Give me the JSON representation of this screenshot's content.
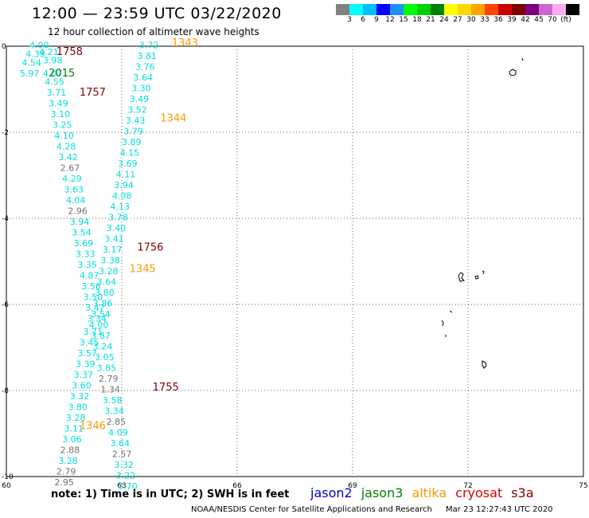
{
  "title": "12:00 — 23:59 UTC 03/22/2020",
  "subtitle": "12 hour collection of altimeter wave heights",
  "legend": {
    "colors": [
      "#808080",
      "#00ffff",
      "#00bfff",
      "#0000ff",
      "#1e90ff",
      "#00ff00",
      "#00d000",
      "#008000",
      "#ffff00",
      "#ffd700",
      "#ffa500",
      "#ff4500",
      "#cc0000",
      "#800000",
      "#800080",
      "#cc66cc",
      "#ffaaee",
      "#000000"
    ],
    "labels": [
      "3",
      "6",
      "9",
      "12",
      "15",
      "18",
      "21",
      "24",
      "27",
      "30",
      "33",
      "36",
      "39",
      "42",
      "45",
      "70",
      "(ft)"
    ]
  },
  "axes": {
    "x_ticks": [
      "60",
      "63",
      "66",
      "69",
      "72",
      "75"
    ],
    "y_ticks": [
      "0",
      "-2",
      "-4",
      "-6",
      "-8",
      "-10"
    ],
    "x_range": [
      60,
      75
    ],
    "y_range": [
      -10,
      0
    ]
  },
  "note": "note:  1) Time is in UTC;  2) SWH is in feet",
  "satellites": [
    {
      "name": "jason2",
      "color": "#0000cc"
    },
    {
      "name": "jason3",
      "color": "#008000"
    },
    {
      "name": "altika",
      "color": "#ff9900"
    },
    {
      "name": "cryosat",
      "color": "#dd0000"
    },
    {
      "name": "s3a",
      "color": "#800000"
    }
  ],
  "footer": {
    "center": "NOAA/NESDIS Center for Satellite Applications and Research",
    "timestamp": "Mar 23 12:27:43 UTC 2020"
  },
  "pass_labels": [
    {
      "text": "1758",
      "lon": 61.3,
      "lat": -0.2,
      "color": "#800000"
    },
    {
      "text": "2015",
      "lon": 61.1,
      "lat": -0.7,
      "color": "#008000"
    },
    {
      "text": "1757",
      "lon": 61.9,
      "lat": -1.15,
      "color": "#800000"
    },
    {
      "text": "1343",
      "lon": 64.3,
      "lat": 0.0,
      "color": "#ff9900"
    },
    {
      "text": "1344",
      "lon": 64.0,
      "lat": -1.75,
      "color": "#ff9900"
    },
    {
      "text": "1756",
      "lon": 63.4,
      "lat": -4.75,
      "color": "#800000"
    },
    {
      "text": "1345",
      "lon": 63.2,
      "lat": -5.25,
      "color": "#ff9900"
    },
    {
      "text": "1755",
      "lon": 63.8,
      "lat": -8.0,
      "color": "#800000"
    },
    {
      "text": "1346",
      "lon": 61.9,
      "lat": -8.9,
      "color": "#ff9900"
    }
  ],
  "wave_heights": [
    {
      "v": "4.00",
      "lon": 60.6,
      "lat": -0.05,
      "c": "#00dddd"
    },
    {
      "v": "4.21",
      "lon": 60.85,
      "lat": -0.2,
      "c": "#00dddd"
    },
    {
      "v": "4.39",
      "lon": 60.5,
      "lat": -0.25,
      "c": "#00dddd"
    },
    {
      "v": "3.98",
      "lon": 60.95,
      "lat": -0.4,
      "c": "#00dddd"
    },
    {
      "v": "4.54",
      "lon": 60.4,
      "lat": -0.45,
      "c": "#00dddd"
    },
    {
      "v": "5.97",
      "lon": 60.35,
      "lat": -0.7,
      "c": "#00dddd"
    },
    {
      "v": "4.07",
      "lon": 60.95,
      "lat": -0.7,
      "c": "#00dddd"
    },
    {
      "v": "4.55",
      "lon": 61.0,
      "lat": -0.9,
      "c": "#00dddd"
    },
    {
      "v": "3.71",
      "lon": 61.05,
      "lat": -1.15,
      "c": "#00dddd"
    },
    {
      "v": "3.49",
      "lon": 61.1,
      "lat": -1.4,
      "c": "#00dddd"
    },
    {
      "v": "3.10",
      "lon": 61.15,
      "lat": -1.65,
      "c": "#00dddd"
    },
    {
      "v": "3.25",
      "lon": 61.2,
      "lat": -1.9,
      "c": "#00dddd"
    },
    {
      "v": "4.10",
      "lon": 61.25,
      "lat": -2.15,
      "c": "#00dddd"
    },
    {
      "v": "4.28",
      "lon": 61.3,
      "lat": -2.4,
      "c": "#00dddd"
    },
    {
      "v": "3.42",
      "lon": 61.35,
      "lat": -2.65,
      "c": "#00dddd"
    },
    {
      "v": "2.67",
      "lon": 61.4,
      "lat": -2.9,
      "c": "#707070"
    },
    {
      "v": "4.29",
      "lon": 61.45,
      "lat": -3.15,
      "c": "#00dddd"
    },
    {
      "v": "3.63",
      "lon": 61.5,
      "lat": -3.4,
      "c": "#00dddd"
    },
    {
      "v": "4.04",
      "lon": 61.55,
      "lat": -3.65,
      "c": "#00dddd"
    },
    {
      "v": "2.96",
      "lon": 61.6,
      "lat": -3.9,
      "c": "#707070"
    },
    {
      "v": "3.94",
      "lon": 61.65,
      "lat": -4.15,
      "c": "#00dddd"
    },
    {
      "v": "3.54",
      "lon": 61.7,
      "lat": -4.4,
      "c": "#00dddd"
    },
    {
      "v": "3.69",
      "lon": 61.75,
      "lat": -4.65,
      "c": "#00dddd"
    },
    {
      "v": "3.33",
      "lon": 61.8,
      "lat": -4.9,
      "c": "#00dddd"
    },
    {
      "v": "3.35",
      "lon": 61.85,
      "lat": -5.15,
      "c": "#00dddd"
    },
    {
      "v": "4.87",
      "lon": 61.9,
      "lat": -5.4,
      "c": "#00dddd"
    },
    {
      "v": "3.56",
      "lon": 61.95,
      "lat": -5.65,
      "c": "#00dddd"
    },
    {
      "v": "3.50",
      "lon": 62.0,
      "lat": -5.9,
      "c": "#00dddd"
    },
    {
      "v": "3.47",
      "lon": 62.05,
      "lat": -6.15,
      "c": "#00dddd"
    },
    {
      "v": "3.34",
      "lon": 62.1,
      "lat": -6.4,
      "c": "#00dddd"
    },
    {
      "v": "3.71",
      "lon": 62.0,
      "lat": -6.7,
      "c": "#00dddd"
    },
    {
      "v": "3.45",
      "lon": 61.9,
      "lat": -6.95,
      "c": "#00dddd"
    },
    {
      "v": "3.57",
      "lon": 61.85,
      "lat": -7.2,
      "c": "#00dddd"
    },
    {
      "v": "3.39",
      "lon": 61.8,
      "lat": -7.45,
      "c": "#00dddd"
    },
    {
      "v": "3.37",
      "lon": 61.75,
      "lat": -7.7,
      "c": "#00dddd"
    },
    {
      "v": "3.60",
      "lon": 61.7,
      "lat": -7.95,
      "c": "#00dddd"
    },
    {
      "v": "3.32",
      "lon": 61.65,
      "lat": -8.2,
      "c": "#00dddd"
    },
    {
      "v": "3.80",
      "lon": 61.6,
      "lat": -8.45,
      "c": "#00dddd"
    },
    {
      "v": "3.28",
      "lon": 61.55,
      "lat": -8.7,
      "c": "#00dddd"
    },
    {
      "v": "3.11",
      "lon": 61.5,
      "lat": -8.95,
      "c": "#00dddd"
    },
    {
      "v": "3.06",
      "lon": 61.45,
      "lat": -9.2,
      "c": "#00dddd"
    },
    {
      "v": "2.88",
      "lon": 61.4,
      "lat": -9.45,
      "c": "#707070"
    },
    {
      "v": "3.28",
      "lon": 61.35,
      "lat": -9.7,
      "c": "#00dddd"
    },
    {
      "v": "2.79",
      "lon": 61.3,
      "lat": -9.95,
      "c": "#707070"
    },
    {
      "v": "2.95",
      "lon": 61.25,
      "lat": -10.2,
      "c": "#707070"
    },
    {
      "v": "3.72",
      "lon": 63.45,
      "lat": -0.05,
      "c": "#00dddd"
    },
    {
      "v": "3.81",
      "lon": 63.4,
      "lat": -0.3,
      "c": "#00dddd"
    },
    {
      "v": "3.76",
      "lon": 63.35,
      "lat": -0.55,
      "c": "#00dddd"
    },
    {
      "v": "3.64",
      "lon": 63.3,
      "lat": -0.8,
      "c": "#00dddd"
    },
    {
      "v": "3.30",
      "lon": 63.25,
      "lat": -1.05,
      "c": "#00dddd"
    },
    {
      "v": "3.49",
      "lon": 63.2,
      "lat": -1.3,
      "c": "#00dddd"
    },
    {
      "v": "3.52",
      "lon": 63.15,
      "lat": -1.55,
      "c": "#00dddd"
    },
    {
      "v": "3.43",
      "lon": 63.1,
      "lat": -1.8,
      "c": "#00dddd"
    },
    {
      "v": "3.79",
      "lon": 63.05,
      "lat": -2.05,
      "c": "#00dddd"
    },
    {
      "v": "3.89",
      "lon": 63.0,
      "lat": -2.3,
      "c": "#00dddd"
    },
    {
      "v": "4.15",
      "lon": 62.95,
      "lat": -2.55,
      "c": "#00dddd"
    },
    {
      "v": "3.69",
      "lon": 62.9,
      "lat": -2.8,
      "c": "#00dddd"
    },
    {
      "v": "4.11",
      "lon": 62.85,
      "lat": -3.05,
      "c": "#00dddd"
    },
    {
      "v": "3.94",
      "lon": 62.8,
      "lat": -3.3,
      "c": "#00dddd"
    },
    {
      "v": "4.08",
      "lon": 62.75,
      "lat": -3.55,
      "c": "#00dddd"
    },
    {
      "v": "4.13",
      "lon": 62.7,
      "lat": -3.8,
      "c": "#00dddd"
    },
    {
      "v": "3.78",
      "lon": 62.65,
      "lat": -4.05,
      "c": "#00dddd"
    },
    {
      "v": "3.40",
      "lon": 62.6,
      "lat": -4.3,
      "c": "#00dddd"
    },
    {
      "v": "3.41",
      "lon": 62.55,
      "lat": -4.55,
      "c": "#00dddd"
    },
    {
      "v": "3.17",
      "lon": 62.5,
      "lat": -4.8,
      "c": "#00dddd"
    },
    {
      "v": "3.38",
      "lon": 62.45,
      "lat": -5.05,
      "c": "#00dddd"
    },
    {
      "v": "3.28",
      "lon": 62.4,
      "lat": -5.3,
      "c": "#00dddd"
    },
    {
      "v": "3.64",
      "lon": 62.35,
      "lat": -5.55,
      "c": "#00dddd"
    },
    {
      "v": "3.80",
      "lon": 62.3,
      "lat": -5.8,
      "c": "#00dddd"
    },
    {
      "v": "3.86",
      "lon": 62.25,
      "lat": -6.05,
      "c": "#00dddd"
    },
    {
      "v": "3.54",
      "lon": 62.2,
      "lat": -6.3,
      "c": "#00dddd"
    },
    {
      "v": "4.00",
      "lon": 62.15,
      "lat": -6.55,
      "c": "#00dddd"
    },
    {
      "v": "3.87",
      "lon": 62.2,
      "lat": -6.8,
      "c": "#00dddd"
    },
    {
      "v": "3.24",
      "lon": 62.25,
      "lat": -7.05,
      "c": "#00dddd"
    },
    {
      "v": "3.05",
      "lon": 62.3,
      "lat": -7.3,
      "c": "#00dddd"
    },
    {
      "v": "3.85",
      "lon": 62.35,
      "lat": -7.55,
      "c": "#00dddd"
    },
    {
      "v": "2.79",
      "lon": 62.4,
      "lat": -7.8,
      "c": "#707070"
    },
    {
      "v": "1.34",
      "lon": 62.45,
      "lat": -8.05,
      "c": "#707070"
    },
    {
      "v": "3.58",
      "lon": 62.5,
      "lat": -8.3,
      "c": "#00dddd"
    },
    {
      "v": "3.34",
      "lon": 62.55,
      "lat": -8.55,
      "c": "#00dddd"
    },
    {
      "v": "2.85",
      "lon": 62.6,
      "lat": -8.8,
      "c": "#707070"
    },
    {
      "v": "4.09",
      "lon": 62.65,
      "lat": -9.05,
      "c": "#00dddd"
    },
    {
      "v": "3.64",
      "lon": 62.7,
      "lat": -9.3,
      "c": "#00dddd"
    },
    {
      "v": "2.57",
      "lon": 62.75,
      "lat": -9.55,
      "c": "#707070"
    },
    {
      "v": "3.32",
      "lon": 62.8,
      "lat": -9.8,
      "c": "#00dddd"
    },
    {
      "v": "3.22",
      "lon": 62.85,
      "lat": -10.05,
      "c": "#00dddd"
    },
    {
      "v": "3.70",
      "lon": 62.9,
      "lat": -10.3,
      "c": "#00dddd"
    }
  ]
}
